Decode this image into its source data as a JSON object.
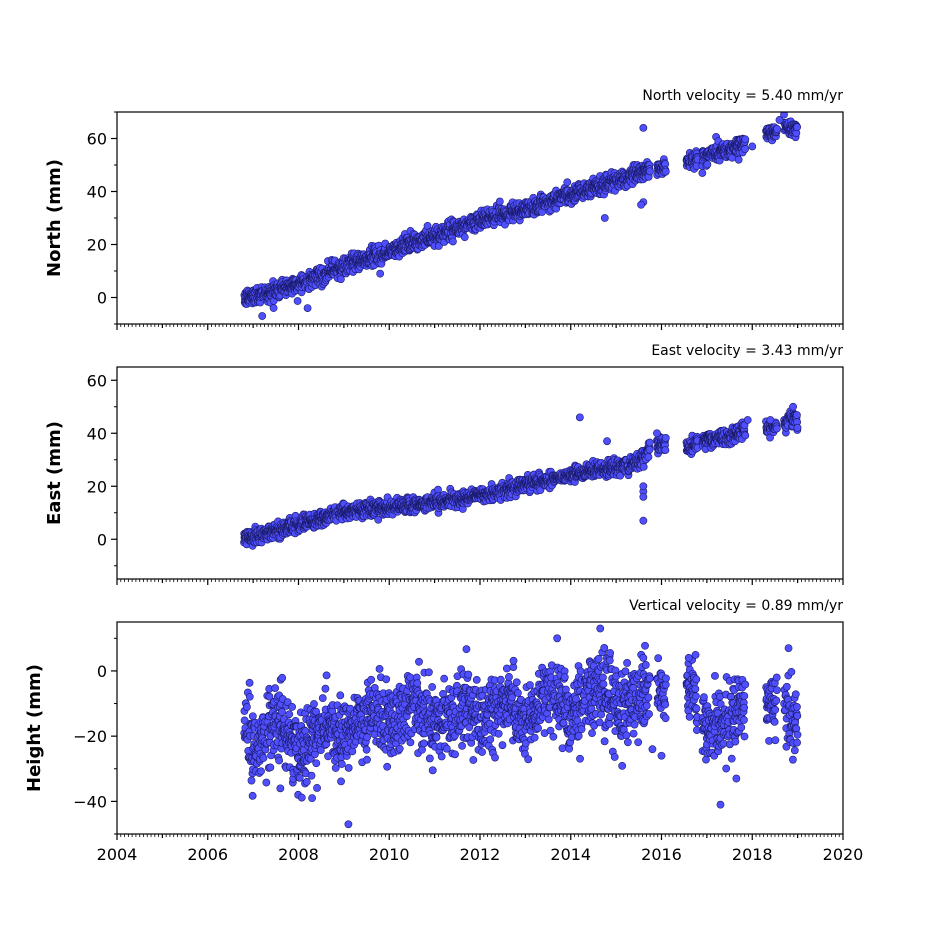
{
  "chart_data": [
    {
      "type": "scatter",
      "title": "North velocity = 5.40 mm/yr",
      "ylabel": "North (mm)",
      "xlim": [
        2004,
        2020
      ],
      "ylim": [
        -10,
        70
      ],
      "yticks": [
        0,
        20,
        40,
        60
      ],
      "xticks": [],
      "marker_color": "#4f4fff",
      "marker_edge": "#1a1a66",
      "trend": {
        "t0": 2006.8,
        "y0": -0.5,
        "slope": 5.4
      },
      "noise": 1.6,
      "series": [
        {
          "t": [
            2006.8,
            2007.0,
            2007.5,
            2008.0,
            2008.5,
            2009.0,
            2009.5,
            2010.0,
            2010.5,
            2011.0,
            2011.5,
            2012.0,
            2012.5,
            2013.0,
            2013.5,
            2014.0,
            2014.5,
            2015.0,
            2015.5,
            2016.0,
            2016.5,
            2017.0,
            2017.5,
            2017.8,
            2018.4,
            2018.8,
            2019.0
          ],
          "y": [
            -0.5,
            0.5,
            2.7,
            5.5,
            8.5,
            12.0,
            14.5,
            17.5,
            20.5,
            23.0,
            26.0,
            29.5,
            31.5,
            33.5,
            36.0,
            39.0,
            41.5,
            44.0,
            47.0,
            49.0,
            51.0,
            53.5,
            56.0,
            58.0,
            62.0,
            64.0,
            64.0
          ]
        }
      ],
      "outliers": [
        {
          "t": 2015.6,
          "y": 64
        },
        {
          "t": 2015.6,
          "y": 36
        },
        {
          "t": 2015.55,
          "y": 35
        },
        {
          "t": 2014.75,
          "y": 30
        },
        {
          "t": 2018.7,
          "y": 69
        },
        {
          "t": 2018.6,
          "y": 67
        },
        {
          "t": 2007.2,
          "y": -7
        },
        {
          "t": 2008.2,
          "y": -4
        },
        {
          "t": 2009.8,
          "y": 9
        },
        {
          "t": 2018.0,
          "y": 57
        },
        {
          "t": 2017.7,
          "y": 52
        },
        {
          "t": 2016.9,
          "y": 47
        }
      ]
    },
    {
      "type": "scatter",
      "title": "East velocity = 3.43 mm/yr",
      "ylabel": "East (mm)",
      "xlim": [
        2004,
        2020
      ],
      "ylim": [
        -15,
        65
      ],
      "yticks": [
        0,
        20,
        40,
        60
      ],
      "xticks": [],
      "marker_color": "#4f4fff",
      "marker_edge": "#1a1a66",
      "trend": {
        "t0": 2006.8,
        "y0": 0.5,
        "slope": 3.43
      },
      "noise": 1.4,
      "series": [
        {
          "t": [
            2006.8,
            2007.0,
            2007.5,
            2008.0,
            2008.5,
            2009.0,
            2009.5,
            2010.0,
            2010.5,
            2011.0,
            2011.5,
            2012.0,
            2012.5,
            2013.0,
            2013.5,
            2014.0,
            2014.5,
            2015.0,
            2015.5,
            2015.8,
            2016.2,
            2016.5,
            2017.0,
            2017.5,
            2017.8,
            2018.4,
            2018.8,
            2019.0
          ],
          "y": [
            0.5,
            1.0,
            3.0,
            5.5,
            8.0,
            10.5,
            11.5,
            12.0,
            13.0,
            14.0,
            15.0,
            16.5,
            18.0,
            21.0,
            22.5,
            24.0,
            26.0,
            27.0,
            29.0,
            36.0,
            36.0,
            33.5,
            37.5,
            38.5,
            41.0,
            42.0,
            45.0,
            45.5
          ]
        }
      ],
      "outliers": [
        {
          "t": 2014.2,
          "y": 46
        },
        {
          "t": 2015.6,
          "y": 7
        },
        {
          "t": 2015.6,
          "y": 18
        },
        {
          "t": 2015.6,
          "y": 20
        },
        {
          "t": 2015.6,
          "y": 16
        },
        {
          "t": 2014.8,
          "y": 37
        },
        {
          "t": 2015.9,
          "y": 40
        },
        {
          "t": 2017.9,
          "y": 45
        },
        {
          "t": 2018.4,
          "y": 45
        },
        {
          "t": 2018.9,
          "y": 50
        }
      ]
    },
    {
      "type": "scatter",
      "title": "Vertical velocity = 0.89 mm/yr",
      "ylabel": "Height (mm)",
      "xlim": [
        2004,
        2020
      ],
      "ylim": [
        -50,
        15
      ],
      "yticks": [
        0,
        -20,
        -40
      ],
      "xticks": [
        2004,
        2006,
        2008,
        2010,
        2012,
        2014,
        2016,
        2018,
        2020
      ],
      "marker_color": "#4f4fff",
      "marker_edge": "#1a1a66",
      "trend": {
        "t0": 2006.8,
        "y0": -18,
        "slope": 0.89
      },
      "noise": 5.5,
      "seasonal_amp": 6,
      "series": [
        {
          "t": [
            2006.8,
            2007.0,
            2007.5,
            2008.0,
            2008.5,
            2009.0,
            2009.5,
            2010.0,
            2010.5,
            2011.0,
            2011.5,
            2012.0,
            2012.5,
            2013.0,
            2013.5,
            2014.0,
            2014.5,
            2015.0,
            2015.5,
            2016.0,
            2016.5,
            2017.0,
            2017.5,
            2018.0,
            2018.5,
            2019.0
          ],
          "y": [
            -14,
            -20,
            -18,
            -22,
            -20,
            -16,
            -18,
            -12,
            -14,
            -13,
            -15,
            -11,
            -14,
            -13,
            -10,
            -9,
            -8,
            -7,
            -12,
            -2,
            -8,
            -12,
            -18,
            -10,
            -11,
            -12
          ]
        }
      ],
      "outliers": [
        {
          "t": 2009.1,
          "y": -47
        },
        {
          "t": 2014.65,
          "y": 13
        },
        {
          "t": 2013.7,
          "y": 10
        },
        {
          "t": 2017.3,
          "y": -41
        },
        {
          "t": 2017.65,
          "y": -33
        },
        {
          "t": 2008.3,
          "y": -39
        },
        {
          "t": 2007.6,
          "y": -36
        },
        {
          "t": 2018.8,
          "y": 7
        },
        {
          "t": 2015.6,
          "y": 4
        },
        {
          "t": 2016.6,
          "y": 4
        },
        {
          "t": 2016.0,
          "y": -26
        },
        {
          "t": 2015.8,
          "y": -24
        }
      ]
    }
  ]
}
